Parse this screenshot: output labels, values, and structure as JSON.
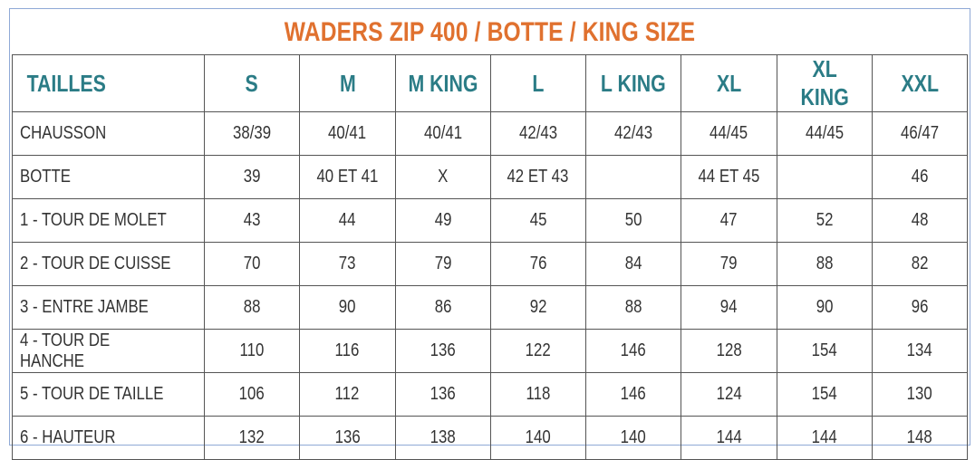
{
  "title": "WADERS ZIP 400  / BOTTE / KING SIZE",
  "header": {
    "label": "TAILLES",
    "sizes": [
      "S",
      "M",
      "M KING",
      "L",
      "L KING",
      "XL",
      "XL KING",
      "XXL"
    ]
  },
  "rows": [
    {
      "label": "CHAUSSON",
      "values": [
        "38/39",
        "40/41",
        "40/41",
        "42/43",
        "42/43",
        "44/45",
        "44/45",
        "46/47"
      ]
    },
    {
      "label": "BOTTE",
      "values": [
        "39",
        "40 ET 41",
        "X",
        "42 ET 43",
        "",
        "44 ET 45",
        "",
        "46"
      ]
    },
    {
      "label": "1 - TOUR DE MOLET",
      "values": [
        "43",
        "44",
        "49",
        "45",
        "50",
        "47",
        "52",
        "48"
      ]
    },
    {
      "label": "2 - TOUR DE CUISSE",
      "values": [
        "70",
        "73",
        "79",
        "76",
        "84",
        "79",
        "88",
        "82"
      ]
    },
    {
      "label": "3 - ENTRE JAMBE",
      "values": [
        "88",
        "90",
        "86",
        "92",
        "88",
        "94",
        "90",
        "96"
      ]
    },
    {
      "label": "4 - TOUR DE HANCHE",
      "values": [
        "110",
        "116",
        "136",
        "122",
        "146",
        "128",
        "154",
        "134"
      ]
    },
    {
      "label": "5 - TOUR DE TAILLE",
      "values": [
        "106",
        "112",
        "136",
        "118",
        "146",
        "124",
        "154",
        "130"
      ]
    },
    {
      "label": "6 - HAUTEUR",
      "values": [
        "132",
        "136",
        "138",
        "140",
        "140",
        "144",
        "144",
        "148"
      ]
    }
  ],
  "colors": {
    "title": "#e0712f",
    "header": "#2b7c86",
    "text": "#333333",
    "grid": "#555555",
    "frame": "#8fa9d6"
  }
}
